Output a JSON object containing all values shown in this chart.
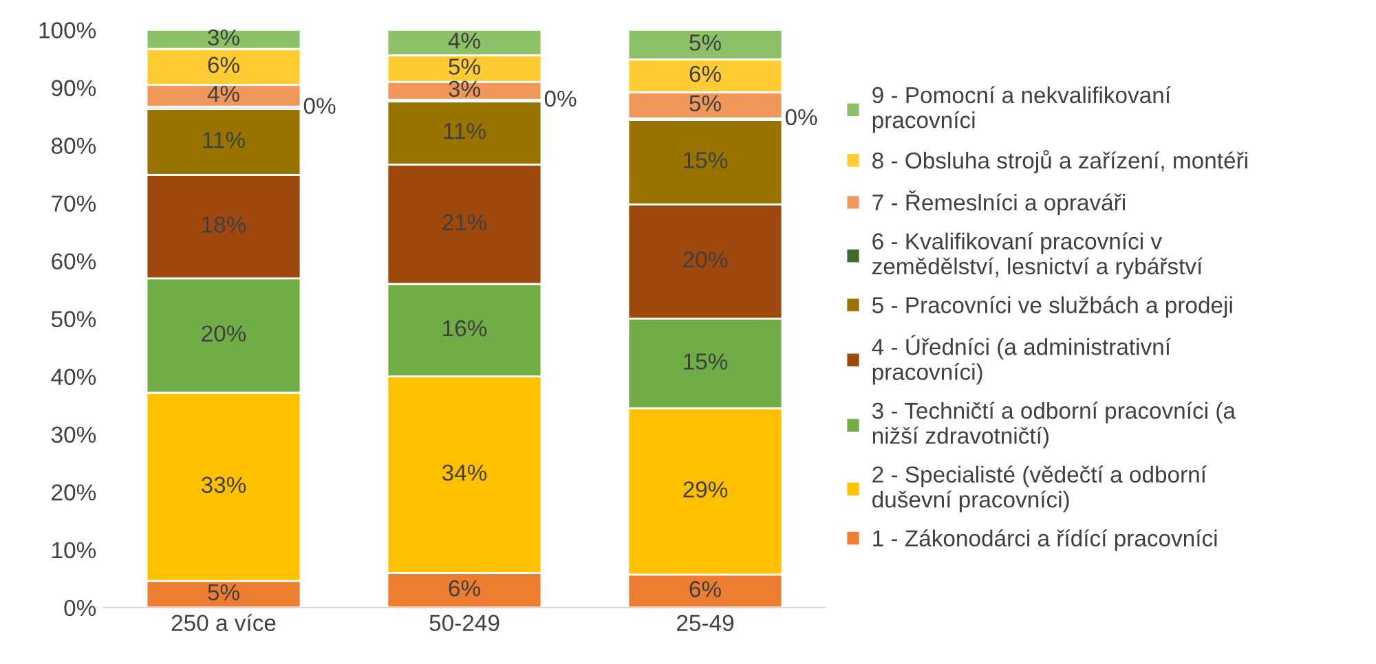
{
  "chart_data": {
    "type": "bar",
    "stacked": true,
    "categories": [
      "250 a více",
      "50-249",
      "25-49"
    ],
    "ylim": [
      0,
      100
    ],
    "yticks": [
      {
        "value": 0,
        "label": "0%"
      },
      {
        "value": 10,
        "label": "10%"
      },
      {
        "value": 20,
        "label": "20%"
      },
      {
        "value": 30,
        "label": "30%"
      },
      {
        "value": 40,
        "label": "40%"
      },
      {
        "value": 50,
        "label": "50%"
      },
      {
        "value": 60,
        "label": "60%"
      },
      {
        "value": 70,
        "label": "70%"
      },
      {
        "value": 80,
        "label": "80%"
      },
      {
        "value": 90,
        "label": "90%"
      },
      {
        "value": 100,
        "label": "100%"
      }
    ],
    "grid": false,
    "legend": "right",
    "series": [
      {
        "name": "1 - Zákonodárci a řídící pracovníci",
        "color": "#ed7d31",
        "values": [
          4.6,
          6.0,
          5.7
        ],
        "value_labels": [
          "5%",
          "6%",
          "6%"
        ]
      },
      {
        "name": "2 - Specialisté (vědečtí a odborní\nduševní pracovníci)",
        "color": "#ffc000",
        "values": [
          32.6,
          34.0,
          28.8
        ],
        "value_labels": [
          "33%",
          "34%",
          "29%"
        ]
      },
      {
        "name": "3 - Techničtí a odborní pracovníci (a\nnižší zdravotničtí)",
        "color": "#70ad47",
        "values": [
          19.8,
          16.0,
          15.5
        ],
        "value_labels": [
          "20%",
          "16%",
          "15%"
        ]
      },
      {
        "name": "4 - Úředníci (a administrativní\npracovníci)",
        "color": "#9e480e",
        "values": [
          17.9,
          20.7,
          19.8
        ],
        "value_labels": [
          "18%",
          "21%",
          "20%"
        ]
      },
      {
        "name": "5 - Pracovníci ve službách a prodeji",
        "color": "#997300",
        "values": [
          11.4,
          10.9,
          14.6
        ],
        "value_labels": [
          "11%",
          "11%",
          "15%"
        ]
      },
      {
        "name": "6 - Kvalifikovaní pracovníci v\nzemědělství, lesnictví a rybářství",
        "color": "#43682b",
        "values": [
          0.4,
          0.3,
          0.3
        ],
        "value_labels": [
          "0%",
          "0%",
          "0%"
        ]
      },
      {
        "name": "7 - Řemeslníci a opraváři",
        "color": "#f1975a",
        "values": [
          3.8,
          3.1,
          4.5
        ],
        "value_labels": [
          "4%",
          "3%",
          "5%"
        ]
      },
      {
        "name": "8 - Obsluha strojů a zařízení, montéři",
        "color": "#ffcd33",
        "values": [
          6.2,
          4.6,
          5.7
        ],
        "value_labels": [
          "6%",
          "5%",
          "6%"
        ]
      },
      {
        "name": "9 - Pomocní a nekvalifikovaní\npracovníci",
        "color": "#8cc168",
        "values": [
          3.3,
          4.4,
          5.1
        ],
        "value_labels": [
          "3%",
          "4%",
          "5%"
        ]
      }
    ]
  }
}
